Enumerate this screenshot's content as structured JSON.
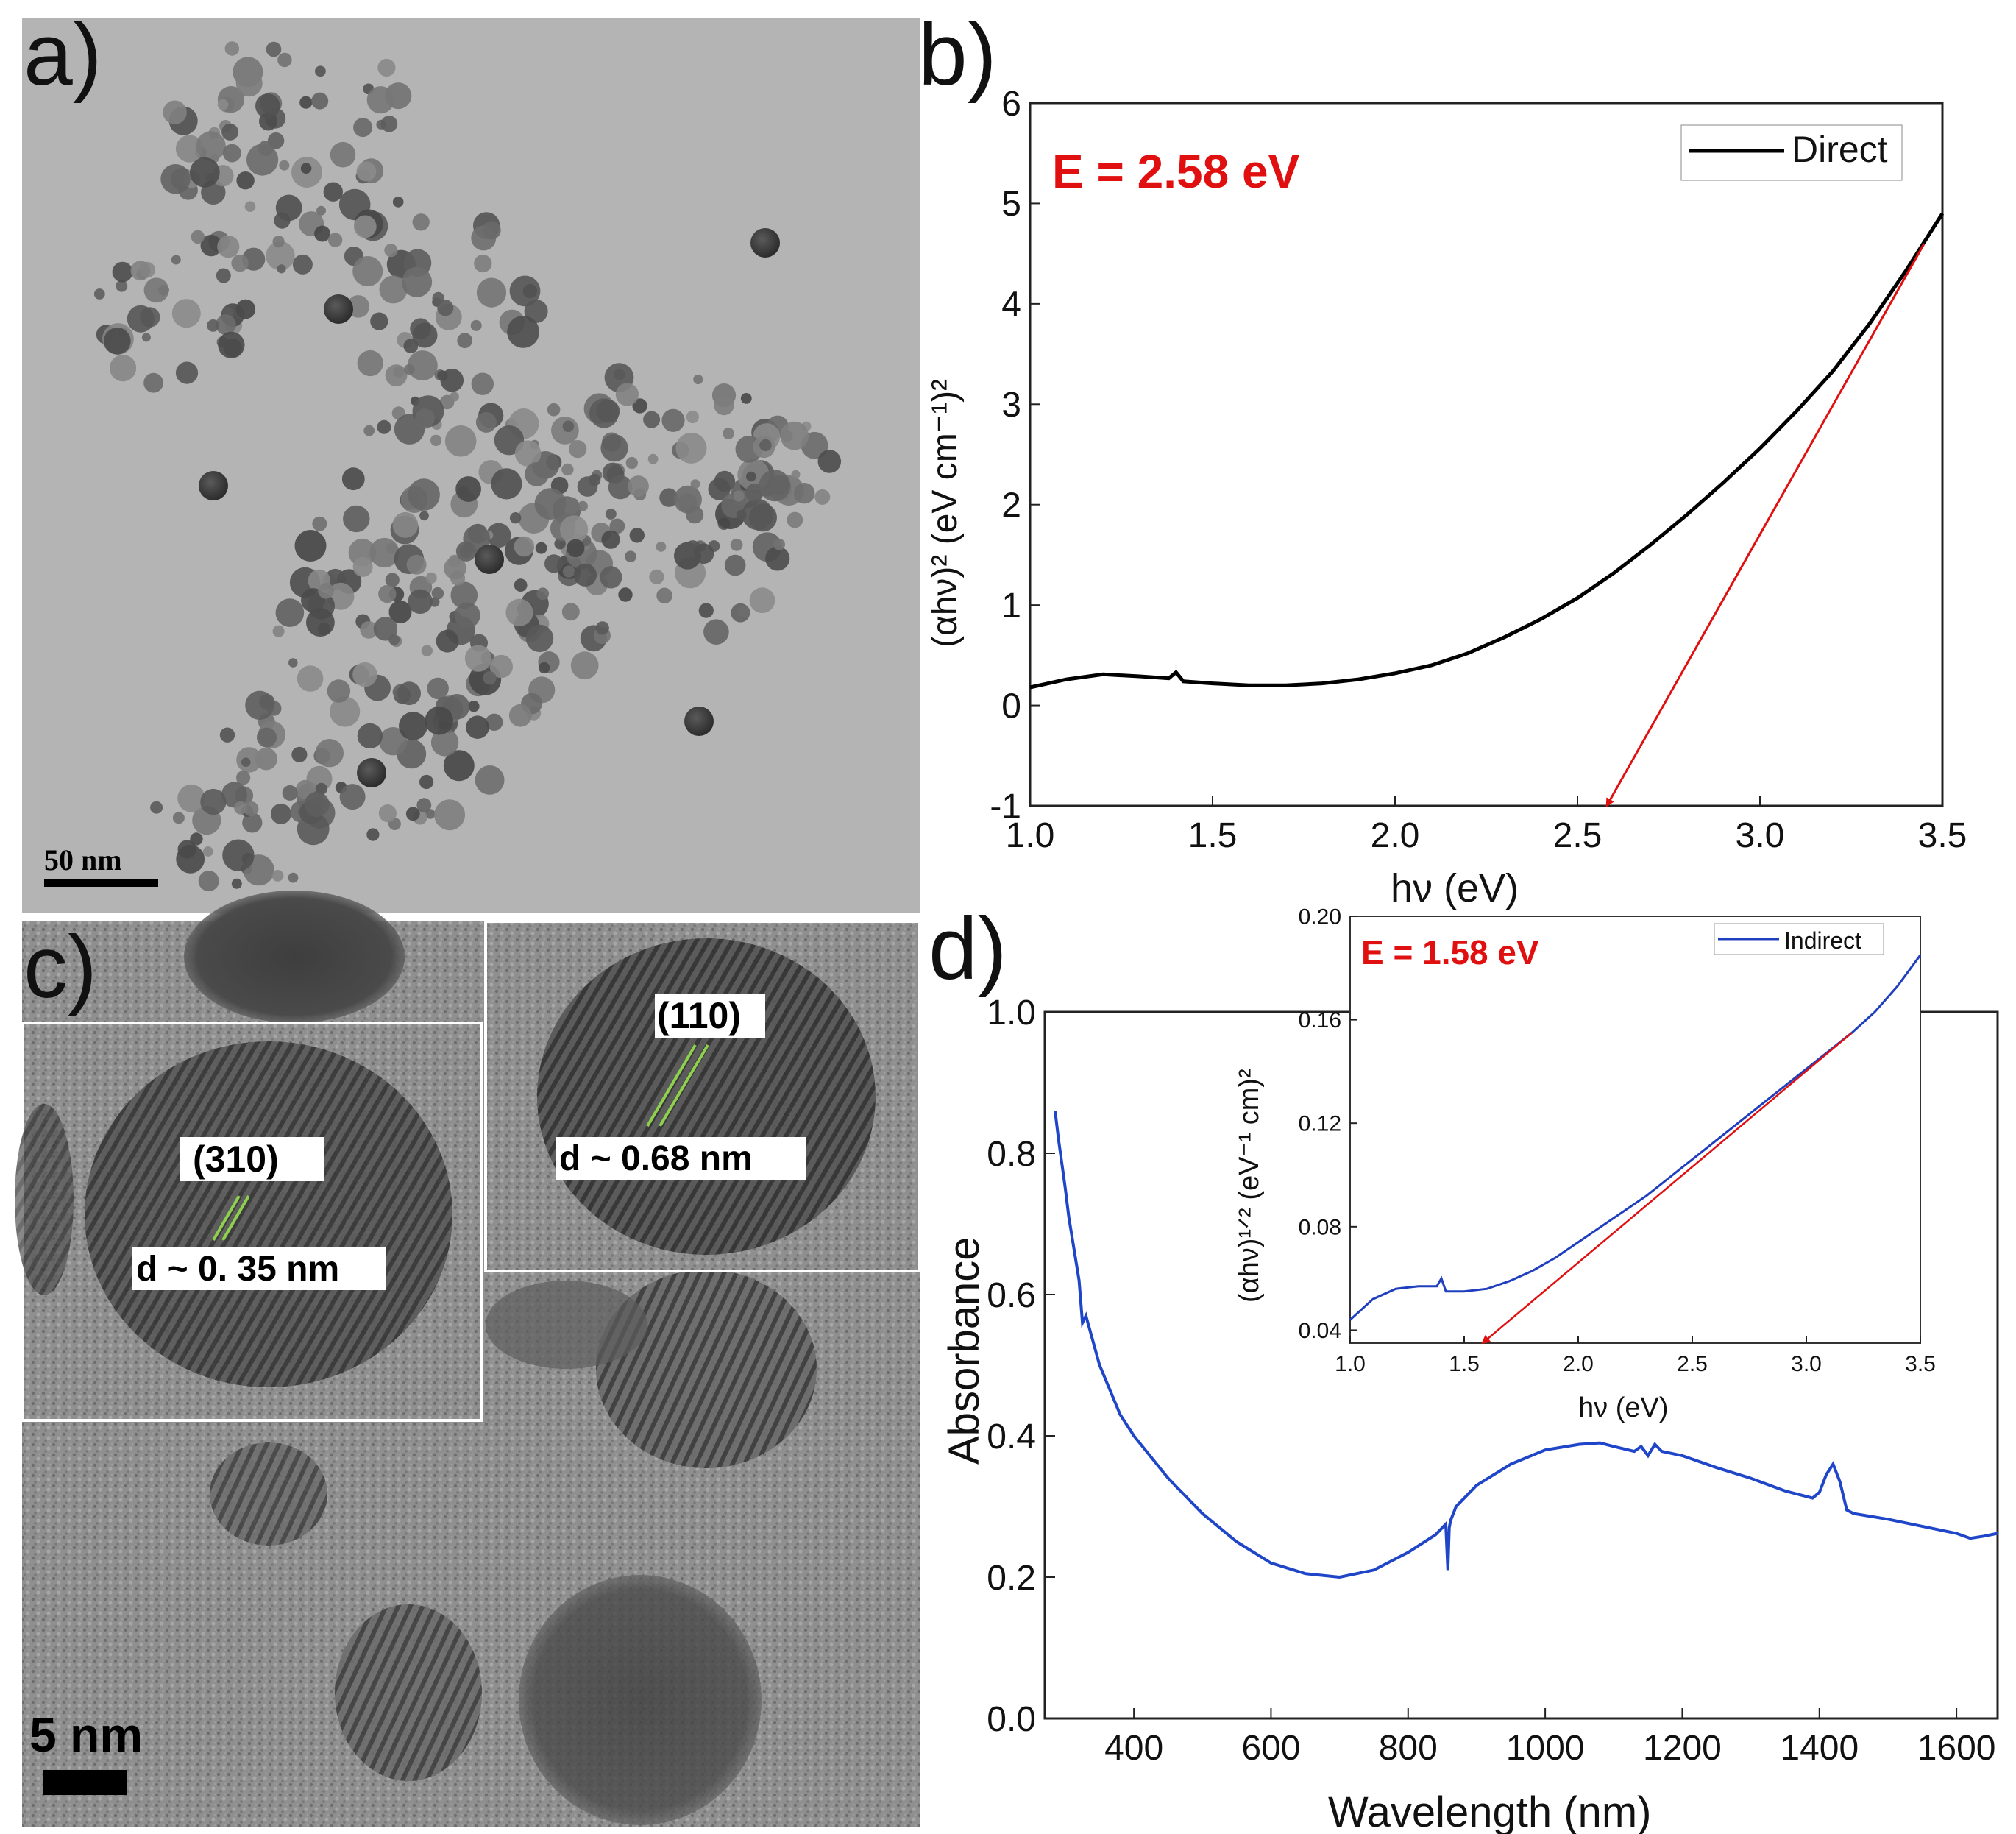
{
  "panels": {
    "a": {
      "label": "a)",
      "scale_bar": "50 nm"
    },
    "c": {
      "label": "c)",
      "scale_bar": "5 nm",
      "annotations": {
        "plane_310": "(310)",
        "d_310": "d ~ 0. 35 nm",
        "plane_110": "(110)",
        "d_110": "d ~ 0.68 nm"
      }
    }
  },
  "chart_data": [
    {
      "panel": "b)",
      "type": "line",
      "annotation": "E = 2.58 eV",
      "xlabel": "hν (eV)",
      "ylabel": "(αhν)² (eV cm⁻¹)²",
      "xlim": [
        1.0,
        3.5
      ],
      "ylim": [
        -1,
        6
      ],
      "xticks": [
        "1.0",
        "1.5",
        "2.0",
        "2.5",
        "3.0",
        "3.5"
      ],
      "yticks": [
        "-1",
        "0",
        "1",
        "2",
        "3",
        "4",
        "5",
        "6"
      ],
      "legend": "Direct",
      "legend_position": "top-right",
      "series": [
        {
          "name": "Direct",
          "color": "#000000",
          "x": [
            1.0,
            1.1,
            1.2,
            1.3,
            1.38,
            1.4,
            1.42,
            1.5,
            1.6,
            1.7,
            1.8,
            1.9,
            2.0,
            2.1,
            2.2,
            2.3,
            2.4,
            2.5,
            2.6,
            2.7,
            2.8,
            2.9,
            3.0,
            3.1,
            3.2,
            3.3,
            3.4,
            3.5
          ],
          "y": [
            0.18,
            0.26,
            0.31,
            0.29,
            0.27,
            0.33,
            0.24,
            0.22,
            0.2,
            0.2,
            0.22,
            0.26,
            0.32,
            0.4,
            0.52,
            0.68,
            0.86,
            1.07,
            1.32,
            1.6,
            1.9,
            2.22,
            2.56,
            2.93,
            3.33,
            3.8,
            4.33,
            4.9
          ]
        }
      ],
      "fit_line": {
        "color": "#e01010",
        "x": [
          3.45,
          2.58
        ],
        "y": [
          4.6,
          -1.0
        ]
      }
    },
    {
      "panel": "d)",
      "type": "line",
      "xlabel": "Wavelength (nm)",
      "ylabel": "Absorbance",
      "xlim": [
        270,
        1660
      ],
      "ylim": [
        0.0,
        1.0
      ],
      "xticks": [
        "400",
        "600",
        "800",
        "1000",
        "1200",
        "1400",
        "1600"
      ],
      "yticks": [
        "0.0",
        "0.2",
        "0.4",
        "0.6",
        "0.8",
        "1.0"
      ],
      "series": [
        {
          "name": "Absorbance",
          "color": "#1f45c8",
          "x": [
            285,
            290,
            300,
            305,
            320,
            325,
            330,
            350,
            380,
            400,
            450,
            500,
            550,
            600,
            650,
            700,
            750,
            800,
            840,
            855,
            858,
            860,
            862,
            870,
            900,
            950,
            1000,
            1050,
            1080,
            1100,
            1130,
            1140,
            1150,
            1160,
            1170,
            1200,
            1250,
            1300,
            1350,
            1390,
            1400,
            1410,
            1420,
            1430,
            1440,
            1450,
            1500,
            1550,
            1600,
            1620,
            1640,
            1660
          ],
          "y": [
            0.86,
            0.82,
            0.75,
            0.71,
            0.62,
            0.56,
            0.57,
            0.5,
            0.43,
            0.4,
            0.34,
            0.29,
            0.25,
            0.22,
            0.205,
            0.2,
            0.21,
            0.235,
            0.26,
            0.275,
            0.21,
            0.27,
            0.28,
            0.3,
            0.33,
            0.36,
            0.38,
            0.388,
            0.39,
            0.385,
            0.378,
            0.385,
            0.372,
            0.388,
            0.378,
            0.372,
            0.355,
            0.34,
            0.322,
            0.312,
            0.32,
            0.345,
            0.36,
            0.335,
            0.295,
            0.29,
            0.282,
            0.272,
            0.262,
            0.255,
            0.258,
            0.262
          ]
        }
      ]
    },
    {
      "panel": "d-inset",
      "type": "line",
      "annotation": "E = 1.58 eV",
      "xlabel": "hν (eV)",
      "ylabel": "(αhν)¹ᐟ² (eV⁻¹ cm)²",
      "xlim": [
        1.0,
        3.5
      ],
      "ylim": [
        0.035,
        0.2
      ],
      "xticks": [
        "1.0",
        "1.5",
        "2.0",
        "2.5",
        "3.0",
        "3.5"
      ],
      "yticks": [
        "0.04",
        "0.08",
        "0.12",
        "0.16",
        "0.20"
      ],
      "legend": "Indirect",
      "legend_position": "top-right",
      "series": [
        {
          "name": "Indirect",
          "color": "#1f3fbf",
          "x": [
            1.0,
            1.1,
            1.2,
            1.3,
            1.38,
            1.4,
            1.42,
            1.5,
            1.6,
            1.7,
            1.8,
            1.9,
            2.0,
            2.1,
            2.2,
            2.3,
            2.4,
            2.5,
            2.6,
            2.7,
            2.8,
            2.9,
            3.0,
            3.1,
            3.2,
            3.3,
            3.4,
            3.5
          ],
          "y": [
            0.044,
            0.052,
            0.056,
            0.057,
            0.057,
            0.06,
            0.055,
            0.055,
            0.056,
            0.059,
            0.063,
            0.068,
            0.074,
            0.08,
            0.086,
            0.092,
            0.099,
            0.106,
            0.113,
            0.12,
            0.127,
            0.134,
            0.141,
            0.148,
            0.155,
            0.163,
            0.173,
            0.185
          ]
        }
      ],
      "fit_line": {
        "color": "#e01010",
        "x": [
          3.2,
          1.58
        ],
        "y": [
          0.155,
          0.035
        ]
      }
    }
  ]
}
